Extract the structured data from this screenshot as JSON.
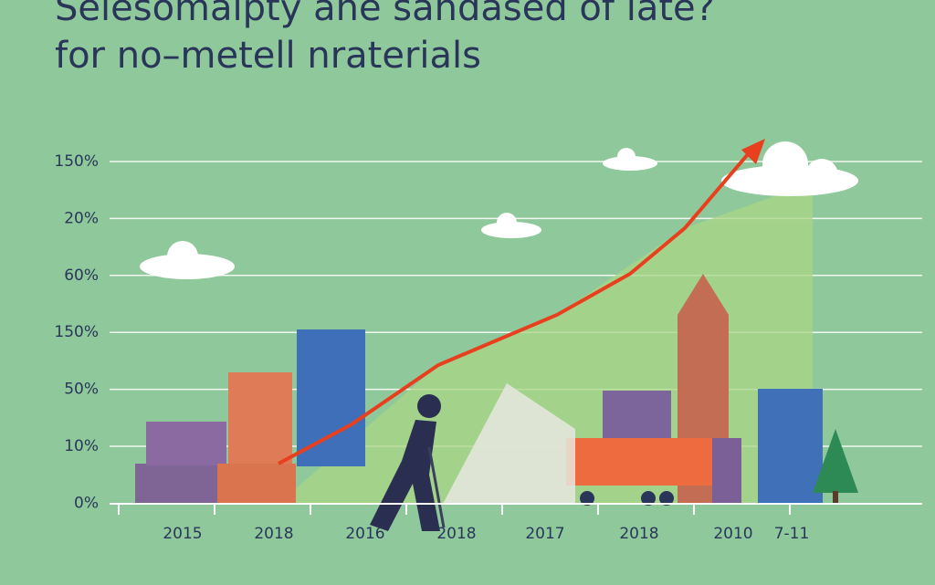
{
  "title": {
    "line1": "Selesomalpty ane sandased of late?",
    "line2": "for no–metell nraterials"
  },
  "axis": {
    "y_labels": [
      "150%",
      "20%",
      "60%",
      "150%",
      "50%",
      "10%",
      "0%"
    ],
    "x_labels": [
      "2015",
      "2018",
      "2016",
      "2018",
      "2017",
      "2018",
      "2010",
      "7-11"
    ]
  }
}
